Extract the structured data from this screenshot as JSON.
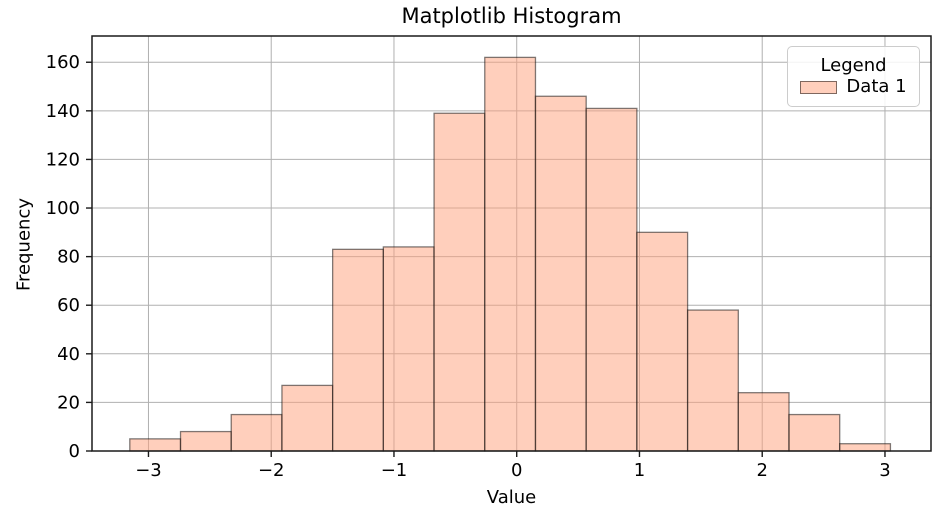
{
  "chart_data": {
    "type": "bar",
    "subtype": "histogram",
    "title": "Matplotlib Histogram",
    "xlabel": "Value",
    "ylabel": "Frequency",
    "bin_start": -3.152,
    "bin_width": 0.4131,
    "frequencies": [
      5,
      8,
      15,
      27,
      83,
      84,
      139,
      162,
      146,
      141,
      90,
      58,
      24,
      15,
      3
    ],
    "total_samples": 1000,
    "xtick_values": [
      -3,
      -2,
      -1,
      0,
      1,
      2,
      3
    ],
    "xtick_labels": [
      "−3",
      "−2",
      "−1",
      "0",
      "1",
      "2",
      "3"
    ],
    "ytick_values": [
      0,
      20,
      40,
      60,
      80,
      100,
      120,
      140,
      160
    ],
    "ytick_labels": [
      "0",
      "20",
      "40",
      "60",
      "80",
      "100",
      "120",
      "140",
      "160"
    ],
    "xlim": [
      -3.46,
      3.375
    ],
    "ylim": [
      0,
      170.8
    ],
    "grid": true,
    "legend": {
      "title": "Legend",
      "position": "upper right",
      "entries": [
        {
          "label": "Data 1"
        }
      ]
    },
    "colors": {
      "bar_fill": "rgba(255,160,122,0.5)",
      "bar_edge": "rgba(0,0,0,0.5)",
      "grid": "#b0b0b0",
      "spine": "#1a1a1a",
      "tick": "#1a1a1a",
      "text": "#000000",
      "legend_border": "#cccccc",
      "background": "#ffffff"
    }
  }
}
